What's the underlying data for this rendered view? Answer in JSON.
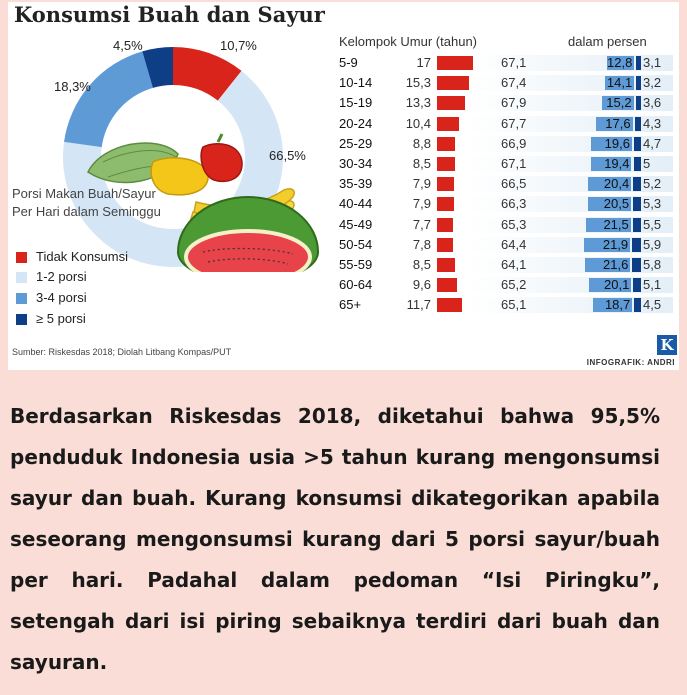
{
  "infographic": {
    "title": "Konsumsi Buah dan Sayur",
    "legend_title": "Porsi Makan Buah/Sayur Per Hari dalam Seminggu",
    "source": "Sumber: Riskesdas 2018; Diolah Litbang Kompas/PUT",
    "credit": "INFOGRAFIK: ANDRI",
    "logo_letter": "K",
    "colors": {
      "red": "#d9241b",
      "light_blue": "#d4e6f5",
      "mid_blue": "#5d9ad6",
      "dark_blue": "#0d3e86"
    }
  },
  "chart_data": [
    {
      "type": "pie",
      "title": "",
      "categories": [
        "Tidak Konsumsi",
        "1-2 porsi",
        "3-4 porsi",
        "≥ 5 porsi"
      ],
      "values": [
        10.7,
        66.5,
        18.3,
        4.5
      ],
      "labels": [
        "10,7%",
        "66,5%",
        "18,3%",
        "4,5%"
      ],
      "colors": [
        "#d9241b",
        "#d4e6f5",
        "#5d9ad6",
        "#0d3e86"
      ],
      "legend_position": "bottom-left"
    },
    {
      "type": "table",
      "title": "",
      "header_left": "Kelompok Umur (tahun)",
      "header_right": "dalam persen",
      "categories": [
        "5-9",
        "10-14",
        "15-19",
        "20-24",
        "25-29",
        "30-34",
        "35-39",
        "40-44",
        "45-49",
        "50-54",
        "55-59",
        "60-64",
        "65+"
      ],
      "series": [
        {
          "name": "Tidak Konsumsi",
          "color": "#d9241b",
          "values": [
            17,
            15.3,
            13.3,
            10.4,
            8.8,
            8.5,
            7.9,
            7.9,
            7.7,
            7.8,
            8.5,
            9.6,
            11.7
          ],
          "labels": [
            "17",
            "15,3",
            "13,3",
            "10,4",
            "8,8",
            "8,5",
            "7,9",
            "7,9",
            "7,7",
            "7,8",
            "8,5",
            "9,6",
            "11,7"
          ]
        },
        {
          "name": "1-2 porsi",
          "color": "#d4e6f5",
          "values": [
            67.1,
            67.4,
            67.9,
            67.7,
            66.9,
            67.1,
            66.5,
            66.3,
            65.3,
            64.4,
            64.1,
            65.2,
            65.1
          ],
          "labels": [
            "67,1",
            "67,4",
            "67,9",
            "67,7",
            "66,9",
            "67,1",
            "66,5",
            "66,3",
            "65,3",
            "64,4",
            "64,1",
            "65,2",
            "65,1"
          ]
        },
        {
          "name": "3-4 porsi",
          "color": "#5d9ad6",
          "values": [
            12.8,
            14.1,
            15.2,
            17.6,
            19.6,
            19.4,
            20.4,
            20.5,
            21.5,
            21.9,
            21.6,
            20.1,
            18.7
          ],
          "labels": [
            "12,8",
            "14,1",
            "15,2",
            "17,6",
            "19,6",
            "19,4",
            "20,4",
            "20,5",
            "21,5",
            "21,9",
            "21,6",
            "20,1",
            "18,7"
          ]
        },
        {
          "name": "≥ 5 porsi",
          "color": "#0d3e86",
          "values": [
            3.1,
            3.2,
            3.6,
            4.3,
            4.7,
            5,
            5.2,
            5.3,
            5.5,
            5.9,
            5.8,
            5.1,
            4.5
          ],
          "labels": [
            "3,1",
            "3,2",
            "3,6",
            "4,3",
            "4,7",
            "5",
            "5,2",
            "5,3",
            "5,5",
            "5,9",
            "5,8",
            "5,1",
            "4,5"
          ]
        }
      ]
    }
  ],
  "paragraph": "Berdasarkan Riskesdas 2018, diketahui bahwa 95,5% penduduk Indonesia usia >5 tahun kurang mengonsumsi sayur dan buah. Kurang konsumsi dikategorikan apabila seseorang mengonsumsi kurang dari 5 porsi sayur/buah per hari. Padahal dalam pedoman “Isi Piringku”, setengah dari isi piring sebaiknya terdiri dari buah dan sayuran."
}
